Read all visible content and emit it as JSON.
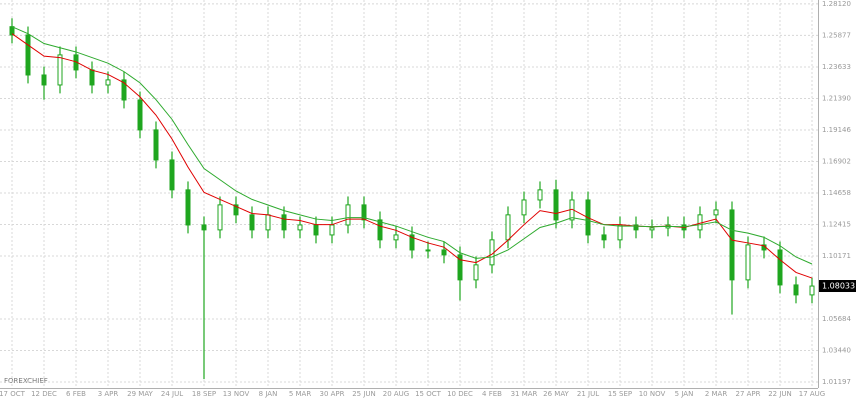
{
  "chart_data": {
    "type": "candlestick",
    "watermark": "FOREXCHIEF",
    "last_price": 1.08033,
    "categories": [
      "17 OCT",
      null,
      "12 DEC",
      null,
      "6 FEB",
      null,
      "3 APR",
      null,
      "29 MAY",
      null,
      "24 JUL",
      null,
      "18 SEP",
      null,
      "13 NOV",
      null,
      "8 JAN",
      null,
      "5 MAR",
      null,
      "30 APR",
      null,
      "25 JUN",
      null,
      "20 AUG",
      null,
      "15 OCT",
      null,
      "10 DEC",
      null,
      "4 FEB",
      null,
      "31 MAR",
      null,
      "26 MAY",
      null,
      "21 JUL",
      null,
      "15 SEP",
      null,
      "10 NOV",
      null,
      "5 JAN",
      null,
      "2 MAR",
      null,
      "27 APR",
      null,
      "22 JUN",
      null,
      "17 AUG"
    ],
    "open": [
      1.265,
      1.2591,
      1.2306,
      1.2235,
      1.2449,
      1.2342,
      1.2235,
      1.2271,
      1.2128,
      1.1915,
      1.1701,
      1.1488,
      1.1238,
      1.1203,
      1.1381,
      1.131,
      1.1203,
      1.131,
      1.1203,
      1.1238,
      1.1167,
      1.1238,
      1.1381,
      1.1274,
      1.1132,
      1.1167,
      1.106,
      1.106,
      1.1025,
      1.0847,
      1.0954,
      1.1132,
      1.131,
      1.1416,
      1.1488,
      1.1274,
      1.1416,
      1.1167,
      1.1132,
      1.1238,
      1.1203,
      1.1217,
      1.1238,
      1.1203,
      1.131,
      1.1345,
      1.0847,
      1.1096,
      1.106,
      1.0811,
      1.074
    ],
    "high": [
      1.271,
      1.2651,
      1.2366,
      1.2509,
      1.2509,
      1.2402,
      1.2331,
      1.2331,
      1.2188,
      1.1975,
      1.1761,
      1.1548,
      1.1298,
      1.1441,
      1.1441,
      1.137,
      1.137,
      1.137,
      1.1298,
      1.1298,
      1.1298,
      1.1441,
      1.1441,
      1.1334,
      1.1227,
      1.1227,
      1.112,
      1.112,
      1.1085,
      1.1014,
      1.1192,
      1.137,
      1.1476,
      1.1548,
      1.156,
      1.1476,
      1.1476,
      1.1227,
      1.1298,
      1.1298,
      1.1277,
      1.1298,
      1.1298,
      1.137,
      1.1405,
      1.1405,
      1.1156,
      1.1156,
      1.112,
      1.0871,
      1.0863
    ],
    "low": [
      1.2531,
      1.2246,
      1.213,
      1.2175,
      1.2282,
      1.2175,
      1.2175,
      1.2068,
      1.1855,
      1.1641,
      1.1428,
      1.1178,
      1.014,
      1.1143,
      1.125,
      1.1143,
      1.1143,
      1.1143,
      1.1143,
      1.1107,
      1.1107,
      1.1178,
      1.1214,
      1.1072,
      1.1072,
      1.1,
      1.1,
      1.0965,
      1.07,
      1.0787,
      1.0894,
      1.1072,
      1.125,
      1.1356,
      1.1214,
      1.1214,
      1.1107,
      1.1072,
      1.1072,
      1.1143,
      1.1143,
      1.1157,
      1.1143,
      1.1143,
      1.125,
      1.06,
      1.0787,
      1.1,
      1.0751,
      1.068,
      1.068
    ],
    "close": [
      1.2591,
      1.2306,
      1.2235,
      1.2449,
      1.2342,
      1.2235,
      1.2271,
      1.2128,
      1.1915,
      1.1701,
      1.1488,
      1.1238,
      1.1203,
      1.1381,
      1.131,
      1.1203,
      1.131,
      1.1203,
      1.1238,
      1.1167,
      1.1238,
      1.1381,
      1.1274,
      1.1132,
      1.1167,
      1.106,
      1.106,
      1.1025,
      1.0847,
      1.0954,
      1.1132,
      1.131,
      1.1416,
      1.1488,
      1.1274,
      1.1416,
      1.1167,
      1.1132,
      1.1238,
      1.1203,
      1.1217,
      1.1238,
      1.1203,
      1.131,
      1.1345,
      1.0847,
      1.1096,
      1.106,
      1.0811,
      1.074,
      1.0803
    ],
    "color": "#1fa61f",
    "lines": [
      {
        "color": "#e00000",
        "values": [
          1.26,
          1.252,
          1.244,
          1.243,
          1.24,
          1.234,
          1.231,
          1.225,
          1.215,
          1.202,
          1.185,
          1.165,
          1.147,
          1.142,
          1.137,
          1.132,
          1.131,
          1.128,
          1.127,
          1.124,
          1.124,
          1.128,
          1.128,
          1.123,
          1.12,
          1.115,
          1.111,
          1.108,
          1.099,
          1.097,
          1.103,
          1.113,
          1.124,
          1.134,
          1.132,
          1.135,
          1.129,
          1.124,
          1.124,
          1.123,
          1.1225,
          1.123,
          1.122,
          1.125,
          1.128,
          1.113,
          1.111,
          1.109,
          1.099,
          1.09,
          1.086
        ]
      },
      {
        "color": "#2eaa2e",
        "values": [
          1.265,
          1.26,
          1.253,
          1.25,
          1.247,
          1.243,
          1.239,
          1.233,
          1.225,
          1.213,
          1.199,
          1.181,
          1.164,
          1.156,
          1.148,
          1.142,
          1.138,
          1.134,
          1.131,
          1.128,
          1.127,
          1.129,
          1.129,
          1.126,
          1.123,
          1.119,
          1.115,
          1.112,
          1.104,
          1.1,
          1.101,
          1.106,
          1.114,
          1.122,
          1.125,
          1.129,
          1.127,
          1.124,
          1.123,
          1.123,
          1.1225,
          1.1228,
          1.1225,
          1.124,
          1.126,
          1.12,
          1.118,
          1.115,
          1.109,
          1.101,
          1.096
        ]
      }
    ],
    "ylim": [
      1.0077,
      1.284
    ],
    "yticks": [
      {
        "value": 1.2812,
        "label": "1.28120"
      },
      1.25877,
      1.23633,
      {
        "value": 1.2139,
        "label": "1.21390"
      },
      1.19146,
      1.16902,
      1.14658,
      1.12415,
      1.10171,
      1.05684,
      {
        "value": 1.0344,
        "label": "1.03440"
      },
      1.01197
    ],
    "grid": true
  }
}
